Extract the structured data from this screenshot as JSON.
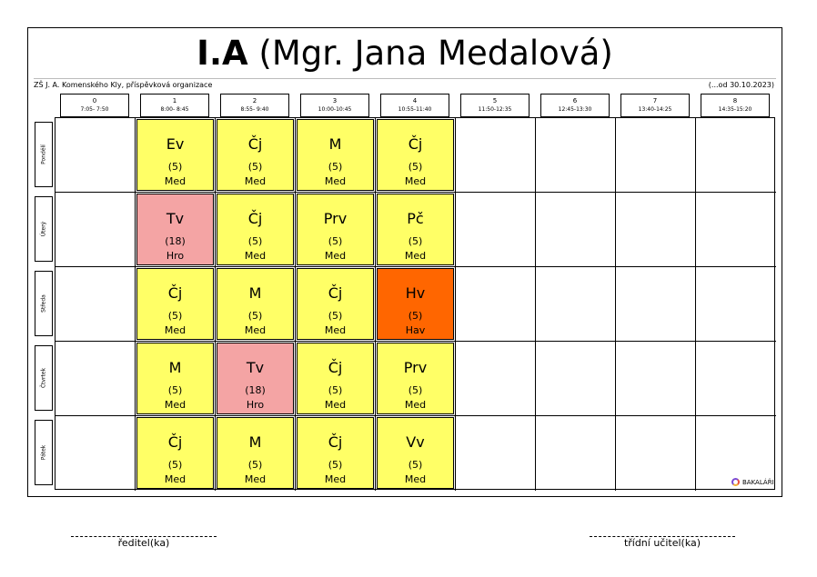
{
  "header": {
    "class_name": "I.A",
    "teacher": "(Mgr. Jana Medalová)",
    "school": "ZŠ J. A. Komenského Kly, příspěvková organizace",
    "valid_from": "(...od 30.10.2023)"
  },
  "periods": [
    {
      "num": "0",
      "time": "7:05- 7:50"
    },
    {
      "num": "1",
      "time": "8:00- 8:45"
    },
    {
      "num": "2",
      "time": "8:55- 9:40"
    },
    {
      "num": "3",
      "time": "10:00-10:45"
    },
    {
      "num": "4",
      "time": "10:55-11:40"
    },
    {
      "num": "5",
      "time": "11:50-12:35"
    },
    {
      "num": "6",
      "time": "12:45-13:30"
    },
    {
      "num": "7",
      "time": "13:40-14:25"
    },
    {
      "num": "8",
      "time": "14:35-15:20"
    }
  ],
  "days": [
    "Pondělí",
    "Úterý",
    "Středa",
    "Čtvrtek",
    "Pátek"
  ],
  "colors": {
    "regular": "#ffff66",
    "pe": "#f4a4a4",
    "music": "#ff6600"
  },
  "timetable": [
    [
      {
        "subject": "Ev",
        "group": "(5)",
        "teacher": "Med",
        "color": "regular"
      },
      {
        "subject": "Čj",
        "group": "(5)",
        "teacher": "Med",
        "color": "regular"
      },
      {
        "subject": "M",
        "group": "(5)",
        "teacher": "Med",
        "color": "regular"
      },
      {
        "subject": "Čj",
        "group": "(5)",
        "teacher": "Med",
        "color": "regular"
      }
    ],
    [
      {
        "subject": "Tv",
        "group": "(18)",
        "teacher": "Hro",
        "color": "pe"
      },
      {
        "subject": "Čj",
        "group": "(5)",
        "teacher": "Med",
        "color": "regular"
      },
      {
        "subject": "Prv",
        "group": "(5)",
        "teacher": "Med",
        "color": "regular"
      },
      {
        "subject": "Pč",
        "group": "(5)",
        "teacher": "Med",
        "color": "regular"
      }
    ],
    [
      {
        "subject": "Čj",
        "group": "(5)",
        "teacher": "Med",
        "color": "regular"
      },
      {
        "subject": "M",
        "group": "(5)",
        "teacher": "Med",
        "color": "regular"
      },
      {
        "subject": "Čj",
        "group": "(5)",
        "teacher": "Med",
        "color": "regular"
      },
      {
        "subject": "Hv",
        "group": "(5)",
        "teacher": "Hav",
        "color": "music"
      }
    ],
    [
      {
        "subject": "M",
        "group": "(5)",
        "teacher": "Med",
        "color": "regular"
      },
      {
        "subject": "Tv",
        "group": "(18)",
        "teacher": "Hro",
        "color": "pe"
      },
      {
        "subject": "Čj",
        "group": "(5)",
        "teacher": "Med",
        "color": "regular"
      },
      {
        "subject": "Prv",
        "group": "(5)",
        "teacher": "Med",
        "color": "regular"
      }
    ],
    [
      {
        "subject": "Čj",
        "group": "(5)",
        "teacher": "Med",
        "color": "regular"
      },
      {
        "subject": "M",
        "group": "(5)",
        "teacher": "Med",
        "color": "regular"
      },
      {
        "subject": "Čj",
        "group": "(5)",
        "teacher": "Med",
        "color": "regular"
      },
      {
        "subject": "Vv",
        "group": "(5)",
        "teacher": "Med",
        "color": "regular"
      }
    ]
  ],
  "brand": "BAKALÁŘI",
  "signatures": {
    "director": "ředitel(ka)",
    "class_teacher": "třídní učitel(ka)"
  }
}
